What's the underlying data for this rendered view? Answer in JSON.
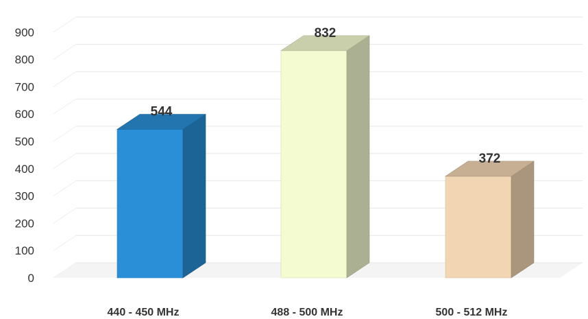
{
  "chart_data": {
    "type": "bar",
    "style": "3d-column",
    "categories": [
      "440 - 450 MHz",
      "488 - 500 MHz",
      "500 - 512 MHz"
    ],
    "values": [
      544,
      832,
      372
    ],
    "bar_colors": [
      "#2a8fd6",
      "#f5fbd0",
      "#f2d6b3"
    ],
    "yticks": [
      0,
      100,
      200,
      300,
      400,
      500,
      600,
      700,
      800,
      900
    ],
    "ylim": [
      0,
      1000
    ],
    "grid": true,
    "legend": "none",
    "data_labels": true
  }
}
